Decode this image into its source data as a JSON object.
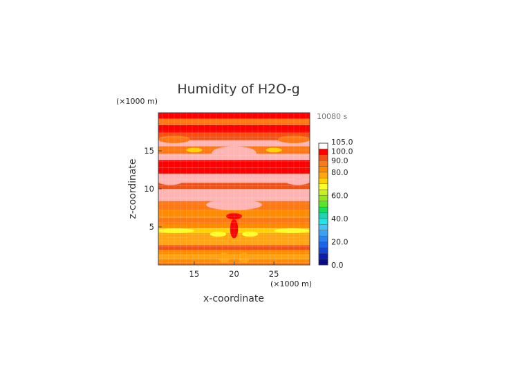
{
  "chart_data": {
    "type": "heatmap",
    "title": "Humidity of H2O-g",
    "xlabel": "x-coordinate",
    "ylabel": "z-coordinate",
    "x_unit": "(×1000 m)",
    "y_unit": "(×1000 m)",
    "time_label": "10080 s",
    "xlim": [
      10.5,
      29.5
    ],
    "ylim": [
      0,
      20
    ],
    "xticks": [
      15,
      20,
      25
    ],
    "yticks": [
      5,
      10,
      15
    ],
    "colorbar": {
      "levels": [
        0,
        5,
        10,
        15,
        20,
        25,
        30,
        35,
        40,
        45,
        50,
        55,
        60,
        65,
        70,
        75,
        80,
        85,
        90,
        95,
        100,
        105
      ],
      "labels": [
        "0.0",
        "20.0",
        "40.0",
        "60.0",
        "80.0",
        "90.0",
        "100.0",
        "105.0"
      ],
      "label_values": [
        0,
        20,
        40,
        60,
        80,
        90,
        100,
        105
      ],
      "colors": [
        "#0a0a8c",
        "#0a1eb4",
        "#1446d2",
        "#1e64e6",
        "#2c82f0",
        "#3ca0f5",
        "#46c3f5",
        "#1ee6e6",
        "#23d2b4",
        "#19dc5a",
        "#5ae628",
        "#96e61e",
        "#c8f01e",
        "#ffff28",
        "#ffd200",
        "#ffa514",
        "#ff8c00",
        "#ff7814",
        "#f55014",
        "#ff0000",
        "#ffffff"
      ]
    },
    "bands": [
      {
        "zmin": 0.0,
        "zmax": 0.3,
        "value": 88
      },
      {
        "zmin": 0.3,
        "zmax": 0.8,
        "value": 82
      },
      {
        "zmin": 0.8,
        "zmax": 1.4,
        "value": 76
      },
      {
        "zmin": 1.4,
        "zmax": 2.0,
        "value": 82
      },
      {
        "zmin": 2.0,
        "zmax": 2.6,
        "value": 93
      },
      {
        "zmin": 2.6,
        "zmax": 3.6,
        "value": 76
      },
      {
        "zmin": 3.6,
        "zmax": 4.2,
        "value": 78
      },
      {
        "zmin": 4.2,
        "zmax": 4.8,
        "value": 70
      },
      {
        "zmin": 4.8,
        "zmax": 5.4,
        "value": 83
      },
      {
        "zmin": 5.4,
        "zmax": 6.2,
        "value": 86
      },
      {
        "zmin": 6.2,
        "zmax": 7.2,
        "value": 82
      },
      {
        "zmin": 7.2,
        "zmax": 8.4,
        "value": 88
      },
      {
        "zmin": 8.4,
        "zmax": 10.0,
        "value": 103
      },
      {
        "zmin": 10.0,
        "zmax": 10.8,
        "value": 91
      },
      {
        "zmin": 10.8,
        "zmax": 12.0,
        "value": 103
      },
      {
        "zmin": 12.0,
        "zmax": 12.8,
        "value": 95
      },
      {
        "zmin": 12.8,
        "zmax": 13.8,
        "value": 97
      },
      {
        "zmin": 13.8,
        "zmax": 14.6,
        "value": 103
      },
      {
        "zmin": 14.6,
        "zmax": 15.6,
        "value": 88
      },
      {
        "zmin": 15.6,
        "zmax": 16.4,
        "value": 103
      },
      {
        "zmin": 16.4,
        "zmax": 17.4,
        "value": 91
      },
      {
        "zmin": 17.4,
        "zmax": 18.4,
        "value": 97
      },
      {
        "zmin": 18.4,
        "zmax": 19.2,
        "value": 89
      },
      {
        "zmin": 19.2,
        "zmax": 20.0,
        "value": 97
      }
    ],
    "patches": [
      {
        "xmin": 10.5,
        "xmax": 14.5,
        "zmin": 16.0,
        "zmax": 17.0,
        "value": 86
      },
      {
        "xmin": 25.5,
        "xmax": 29.5,
        "zmin": 16.0,
        "zmax": 17.0,
        "value": 86
      },
      {
        "xmin": 17.2,
        "xmax": 22.8,
        "zmin": 13.8,
        "zmax": 15.6,
        "value": 103
      },
      {
        "xmin": 14.0,
        "xmax": 16.0,
        "zmin": 14.8,
        "zmax": 15.4,
        "value": 74
      },
      {
        "xmin": 24.0,
        "xmax": 26.0,
        "zmin": 14.8,
        "zmax": 15.4,
        "value": 74
      },
      {
        "xmin": 16.5,
        "xmax": 23.5,
        "zmin": 7.2,
        "zmax": 8.6,
        "value": 103
      },
      {
        "xmin": 10.5,
        "xmax": 13.5,
        "zmin": 10.5,
        "zmax": 11.5,
        "value": 103
      },
      {
        "xmin": 26.5,
        "xmax": 29.5,
        "zmin": 10.5,
        "zmax": 11.5,
        "value": 103
      },
      {
        "xmin": 19.0,
        "xmax": 21.0,
        "zmin": 6.0,
        "zmax": 6.8,
        "value": 95
      },
      {
        "xmin": 19.5,
        "xmax": 20.5,
        "zmin": 3.5,
        "zmax": 6.0,
        "value": 95
      },
      {
        "xmin": 17.0,
        "xmax": 19.0,
        "zmin": 3.7,
        "zmax": 4.4,
        "value": 68
      },
      {
        "xmin": 21.0,
        "xmax": 23.0,
        "zmin": 3.7,
        "zmax": 4.4,
        "value": 68
      },
      {
        "xmin": 10.5,
        "xmax": 15.0,
        "zmin": 4.2,
        "zmax": 4.8,
        "value": 66
      },
      {
        "xmin": 25.0,
        "xmax": 29.5,
        "zmin": 4.2,
        "zmax": 4.8,
        "value": 66
      },
      {
        "xmin": 18.0,
        "xmax": 19.5,
        "zmin": 0.3,
        "zmax": 1.6,
        "value": 78
      },
      {
        "xmin": 20.5,
        "xmax": 22.0,
        "zmin": 0.3,
        "zmax": 1.6,
        "value": 78
      }
    ]
  }
}
